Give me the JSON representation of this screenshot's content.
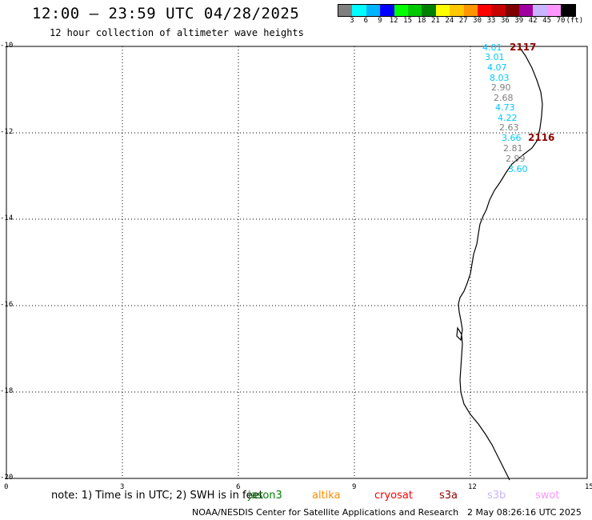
{
  "header": {
    "title": "12:00 – 23:59 UTC 04/28/2025",
    "subtitle": "12 hour collection of altimeter wave heights"
  },
  "colorbar": {
    "colors": [
      "#808080",
      "#00ffff",
      "#00b4ff",
      "#0000ff",
      "#00ff00",
      "#00c800",
      "#008000",
      "#ffff00",
      "#ffc800",
      "#ff9600",
      "#ff0000",
      "#c80000",
      "#800000",
      "#a000a0",
      "#c8b4ff",
      "#ff96ff",
      "#000000"
    ],
    "labels": [
      "3",
      "6",
      "9",
      "12",
      "15",
      "18",
      "21",
      "24",
      "27",
      "30",
      "33",
      "36",
      "39",
      "42",
      "45",
      "70",
      "(ft)"
    ]
  },
  "axes": {
    "x_ticks": [
      "0",
      "3",
      "6",
      "9",
      "12",
      "15"
    ],
    "y_ticks": [
      "-10",
      "-12",
      "-14",
      "-16",
      "-18",
      "-20"
    ]
  },
  "wave_labels": [
    {
      "text": "4.01",
      "color": "#00c8ff"
    },
    {
      "text": "3.01",
      "color": "#00c8ff"
    },
    {
      "text": "4.07",
      "color": "#00c8ff"
    },
    {
      "text": "8.03",
      "color": "#00c8ff"
    },
    {
      "text": "2.90",
      "color": "#808080"
    },
    {
      "text": "2.68",
      "color": "#808080"
    },
    {
      "text": "4.73",
      "color": "#00c8ff"
    },
    {
      "text": "4.22",
      "color": "#00c8ff"
    },
    {
      "text": "2.63",
      "color": "#808080"
    },
    {
      "text": "3.66",
      "color": "#00c8ff"
    },
    {
      "text": "2.81",
      "color": "#808080"
    },
    {
      "text": "2.99",
      "color": "#808080"
    },
    {
      "text": "3.60",
      "color": "#00c8ff"
    }
  ],
  "pass_labels": [
    "2117",
    "2116"
  ],
  "footer": {
    "note": "note: 1) Time is in UTC; 2) SWH is in feet",
    "satellites": [
      {
        "name": "jason3",
        "color": "#008000"
      },
      {
        "name": "altika",
        "color": "#ff8c00"
      },
      {
        "name": "cryosat",
        "color": "#ff0000"
      },
      {
        "name": "s3a",
        "color": "#8b0000"
      },
      {
        "name": "s3b",
        "color": "#c8b4ff"
      },
      {
        "name": "swot",
        "color": "#ff96ff"
      }
    ],
    "credit": "NOAA/NESDIS Center for Satellite Applications and Research",
    "timestamp": "2 May 08:26:16 UTC 2025"
  }
}
